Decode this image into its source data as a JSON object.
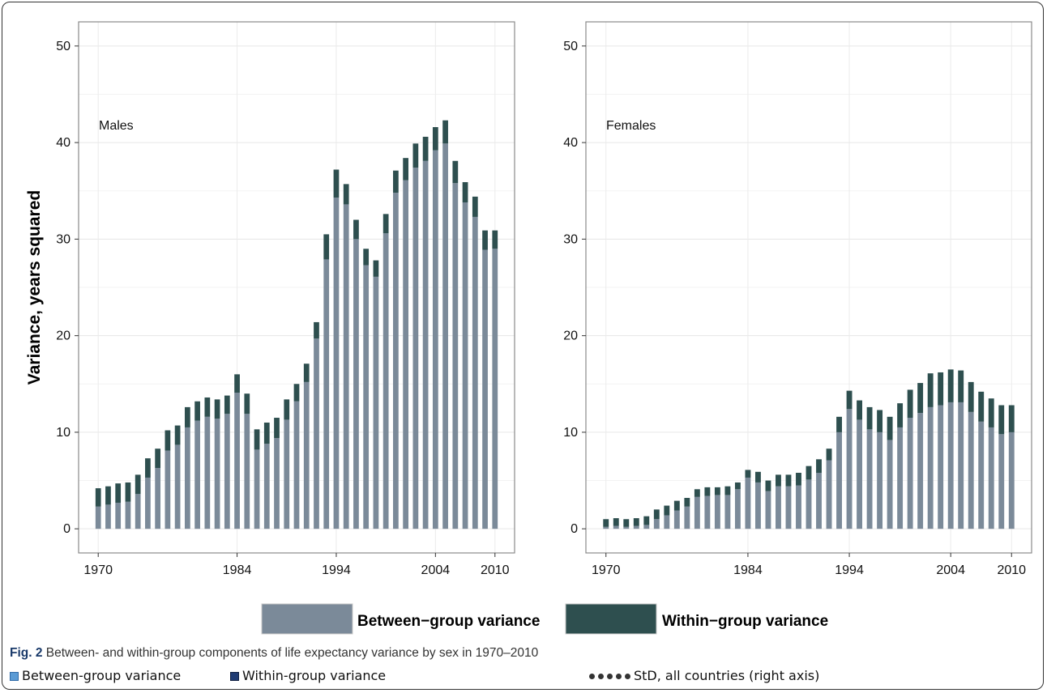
{
  "chart_data": {
    "type": "bar",
    "stacked": true,
    "ylabel": "Variance, years squared",
    "ylim": [
      -2.5,
      52.5
    ],
    "yticks": [
      0,
      10,
      20,
      30,
      40,
      50
    ],
    "xticks": [
      "1970",
      "1984",
      "1994",
      "2004",
      "2010"
    ],
    "grid": true,
    "colors": {
      "between": "#7b8a99",
      "within": "#2e4f4f"
    },
    "legend": {
      "position": "bottom",
      "entries": [
        "Between−group variance",
        "Within−group variance"
      ]
    },
    "years": [
      1970,
      1971,
      1972,
      1973,
      1974,
      1975,
      1976,
      1977,
      1978,
      1979,
      1980,
      1981,
      1982,
      1983,
      1984,
      1985,
      1986,
      1987,
      1988,
      1989,
      1990,
      1991,
      1992,
      1993,
      1994,
      1995,
      1996,
      1997,
      1998,
      1999,
      2000,
      2001,
      2002,
      2003,
      2004,
      2005,
      2006,
      2007,
      2008,
      2009,
      2010
    ],
    "panels": [
      {
        "label": "Males",
        "series": [
          {
            "name": "Between−group variance",
            "values": [
              2.3,
              2.5,
              2.7,
              2.8,
              3.6,
              5.3,
              6.3,
              8.1,
              8.7,
              10.5,
              11.2,
              11.6,
              11.4,
              11.9,
              14.1,
              11.9,
              8.2,
              8.8,
              9.4,
              11.3,
              13.2,
              15.2,
              19.7,
              27.9,
              34.3,
              33.6,
              30.0,
              27.3,
              26.1,
              30.6,
              34.8,
              36.1,
              37.4,
              38.1,
              39.2,
              39.9,
              35.8,
              33.8,
              32.3,
              28.9,
              29.0
            ]
          },
          {
            "name": "Within−group variance",
            "values": [
              1.9,
              1.9,
              2.0,
              2.0,
              2.0,
              2.0,
              2.0,
              2.1,
              2.0,
              2.1,
              2.0,
              2.0,
              2.0,
              1.9,
              1.9,
              2.1,
              2.1,
              2.2,
              2.1,
              2.1,
              1.8,
              1.9,
              1.7,
              2.6,
              2.9,
              2.1,
              2.0,
              1.7,
              1.7,
              2.0,
              2.3,
              2.3,
              2.5,
              2.5,
              2.4,
              2.4,
              2.3,
              2.1,
              2.1,
              2.0,
              1.9
            ]
          }
        ]
      },
      {
        "label": "Females",
        "series": [
          {
            "name": "Between−group variance",
            "values": [
              0.2,
              0.3,
              0.2,
              0.3,
              0.4,
              1.0,
              1.4,
              1.9,
              2.3,
              3.3,
              3.4,
              3.5,
              3.5,
              4.1,
              5.3,
              4.8,
              3.9,
              4.4,
              4.4,
              4.5,
              5.1,
              5.8,
              7.1,
              10.0,
              12.4,
              11.3,
              10.3,
              10.0,
              9.2,
              10.5,
              11.5,
              12.0,
              12.6,
              12.8,
              13.1,
              13.1,
              12.1,
              11.1,
              10.5,
              9.8,
              10.0
            ]
          },
          {
            "name": "Within−group variance",
            "values": [
              0.8,
              0.8,
              0.8,
              0.8,
              0.9,
              1.0,
              1.0,
              1.0,
              0.9,
              0.8,
              0.9,
              0.8,
              0.9,
              0.7,
              0.8,
              1.1,
              1.1,
              1.2,
              1.2,
              1.3,
              1.4,
              1.4,
              1.2,
              1.6,
              1.9,
              2.0,
              2.3,
              2.3,
              2.4,
              2.5,
              2.9,
              3.1,
              3.5,
              3.4,
              3.4,
              3.3,
              3.1,
              3.1,
              3.0,
              3.0,
              2.8
            ]
          }
        ]
      }
    ]
  },
  "caption": {
    "figno": "Fig. 2",
    "text": " Between- and within-group components of life expectancy variance by sex in 1970–2010"
  },
  "footer": {
    "between": "Between-group variance",
    "within": "Within-group variance",
    "std": "StD, all countries (right axis)"
  }
}
